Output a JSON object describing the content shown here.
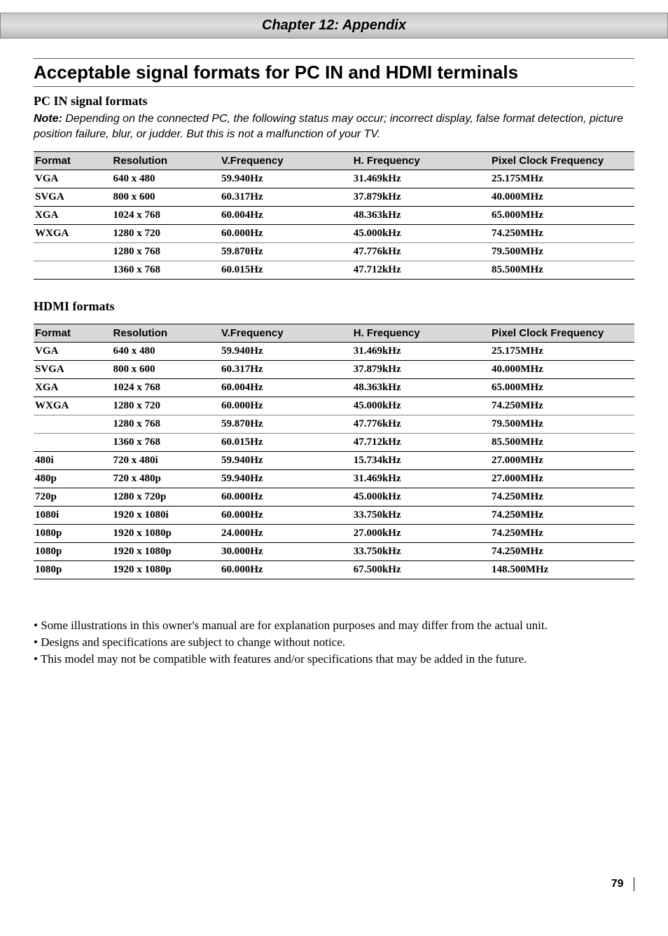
{
  "chapter_header": "Chapter 12: Appendix",
  "main_title": "Acceptable signal formats for PC IN and HDMI terminals",
  "pc_in": {
    "title": "PC IN signal formats",
    "note_label": "Note:",
    "note_text": " Depending on the connected PC, the following status may occur; incorrect display, false format detection, picture position failure, blur, or judder. But this is not a malfunction of your TV.",
    "headers": [
      "Format",
      "Resolution",
      "V.Frequency",
      "H. Frequency",
      "Pixel Clock Frequency"
    ],
    "rows": [
      [
        "VGA",
        "640 x 480",
        "59.940Hz",
        "31.469kHz",
        "25.175MHz"
      ],
      [
        "SVGA",
        "800 x 600",
        "60.317Hz",
        "37.879kHz",
        "40.000MHz"
      ],
      [
        "XGA",
        "1024 x 768",
        "60.004Hz",
        "48.363kHz",
        "65.000MHz"
      ],
      [
        "WXGA",
        "1280 x 720",
        "60.000Hz",
        "45.000kHz",
        "74.250MHz"
      ],
      [
        "",
        "1280 x 768",
        "59.870Hz",
        "47.776kHz",
        "79.500MHz"
      ],
      [
        "",
        "1360 x 768",
        "60.015Hz",
        "47.712kHz",
        "85.500MHz"
      ]
    ]
  },
  "hdmi": {
    "title": "HDMI formats",
    "headers": [
      "Format",
      "Resolution",
      "V.Frequency",
      "H. Frequency",
      "Pixel Clock Frequency"
    ],
    "rows": [
      [
        "VGA",
        "640 x 480",
        "59.940Hz",
        "31.469kHz",
        "25.175MHz"
      ],
      [
        "SVGA",
        "800 x 600",
        "60.317Hz",
        "37.879kHz",
        "40.000MHz"
      ],
      [
        "XGA",
        "1024 x 768",
        "60.004Hz",
        "48.363kHz",
        "65.000MHz"
      ],
      [
        "WXGA",
        "1280 x 720",
        "60.000Hz",
        "45.000kHz",
        "74.250MHz"
      ],
      [
        "",
        "1280 x 768",
        "59.870Hz",
        "47.776kHz",
        "79.500MHz"
      ],
      [
        "",
        "1360 x 768",
        "60.015Hz",
        "47.712kHz",
        "85.500MHz"
      ],
      [
        "480i",
        "720 x 480i",
        "59.940Hz",
        "15.734kHz",
        "27.000MHz"
      ],
      [
        "480p",
        "720 x 480p",
        "59.940Hz",
        "31.469kHz",
        "27.000MHz"
      ],
      [
        "720p",
        "1280 x 720p",
        "60.000Hz",
        "45.000kHz",
        "74.250MHz"
      ],
      [
        "1080i",
        "1920 x 1080i",
        "60.000Hz",
        "33.750kHz",
        "74.250MHz"
      ],
      [
        "1080p",
        "1920 x 1080p",
        "24.000Hz",
        "27.000kHz",
        "74.250MHz"
      ],
      [
        "1080p",
        "1920 x 1080p",
        "30.000Hz",
        "33.750kHz",
        "74.250MHz"
      ],
      [
        "1080p",
        "1920 x 1080p",
        "60.000Hz",
        "67.500kHz",
        "148.500MHz"
      ]
    ]
  },
  "footnotes": [
    "• Some illustrations in this owner's manual are for explanation purposes and may differ from the actual unit.",
    "• Designs and specifications are subject to change without notice.",
    "• This model may not be compatible with features and/or specifications that may be added in the future."
  ],
  "page_number": "79"
}
